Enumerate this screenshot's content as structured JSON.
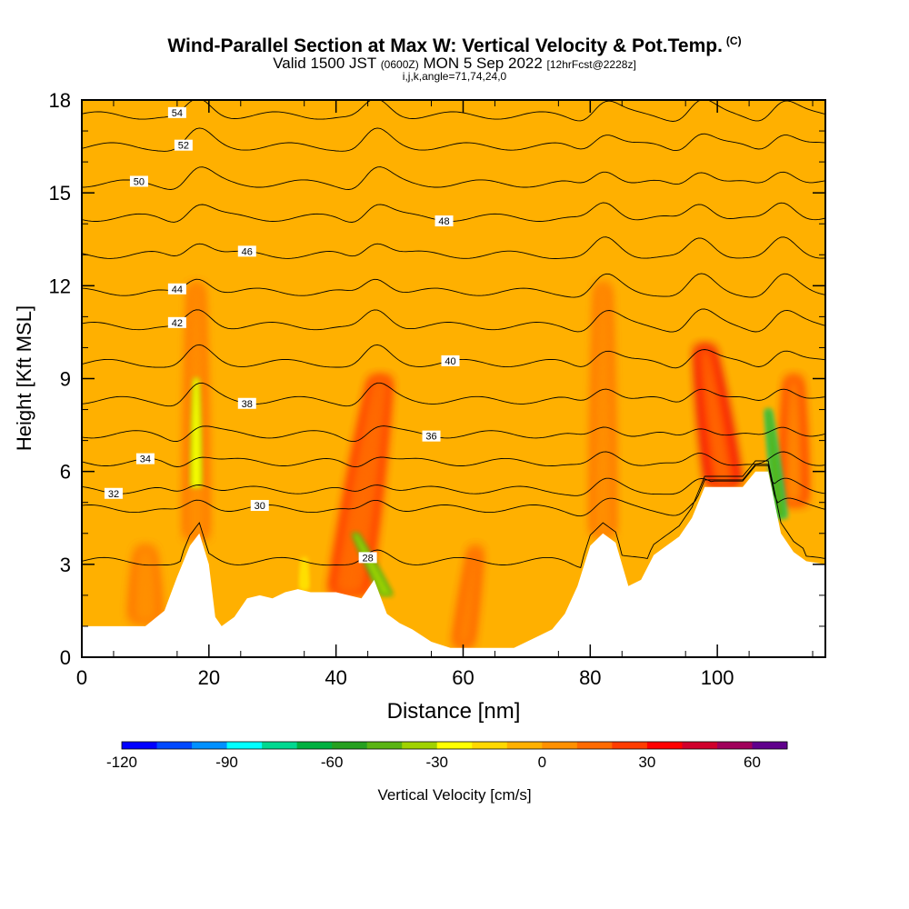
{
  "title": {
    "main": "Wind-Parallel Section at Max W: Vertical Velocity & Pot.Temp.",
    "copyright": "(C)",
    "valid_prefix": "Valid 1500 JST",
    "valid_utc": "(0600Z)",
    "valid_date": "MON 5 Sep 2022",
    "forecast": "[12hrFcst@2228z]",
    "indices": "i,j,k,angle=71,74,24,0"
  },
  "colors": {
    "background_field": "#ffb000",
    "terrain": "#ffffff",
    "contour": "#000000"
  },
  "chart_data": {
    "type": "heatmap",
    "xlabel": "Distance [nm]",
    "ylabel": "Height [Kft MSL]",
    "xlim": [
      0,
      117
    ],
    "ylim": [
      0,
      18
    ],
    "x_ticks": [
      0,
      20,
      40,
      60,
      80,
      100
    ],
    "y_ticks": [
      0,
      3,
      6,
      9,
      12,
      15,
      18
    ],
    "colorbar": {
      "label": "Vertical Velocity [cm/s]",
      "min": -120,
      "max": 70,
      "step": 10,
      "tick_values": [
        -120,
        -90,
        -60,
        -30,
        0,
        30,
        60
      ],
      "colors": [
        "#0000ff",
        "#0048ff",
        "#0090ff",
        "#00ffff",
        "#00d890",
        "#00b040",
        "#26a020",
        "#5ab414",
        "#a0d200",
        "#ffff00",
        "#ffd800",
        "#ffb000",
        "#ff9000",
        "#ff6a00",
        "#ff3c00",
        "#ff0000",
        "#d0002c",
        "#a0005a",
        "#60008c"
      ]
    },
    "terrain": {
      "x": [
        0,
        5,
        10,
        13,
        15,
        17,
        18.5,
        20,
        21,
        22,
        24,
        26,
        28,
        30,
        32,
        34,
        36,
        38,
        40,
        42,
        44,
        46,
        48,
        50,
        52,
        55,
        58,
        60,
        62,
        65,
        68,
        70,
        72,
        74,
        76,
        78,
        80,
        82,
        84,
        86,
        88,
        90,
        92,
        94,
        96,
        98,
        100,
        102,
        104,
        106,
        108,
        110,
        112,
        114,
        117
      ],
      "height": [
        1,
        1,
        1,
        1.5,
        2.6,
        3.6,
        4,
        3,
        1.3,
        1,
        1.3,
        1.9,
        2,
        1.9,
        2.1,
        2.2,
        2.1,
        2.1,
        2.1,
        2,
        1.9,
        2.5,
        1.4,
        1.1,
        0.9,
        0.5,
        0.3,
        0.3,
        0.3,
        0.3,
        0.3,
        0.5,
        0.7,
        0.9,
        1.4,
        2.3,
        3.6,
        4,
        3.7,
        2.3,
        2.5,
        3.3,
        3.6,
        3.9,
        4.5,
        5.5,
        5.5,
        5.5,
        5.5,
        6,
        6,
        4,
        3.4,
        3.1,
        3
      ]
    },
    "updraft_plumes": [
      {
        "x_top": 18,
        "y_top": 12,
        "x_base": 18,
        "y_base": 3.9,
        "w": 15,
        "half_width": 1.6
      },
      {
        "x_top": 47,
        "y_top": 9,
        "x_base": 42,
        "y_base": 2.1,
        "w": 35,
        "half_width": 2.8
      },
      {
        "x_top": 82,
        "y_top": 12,
        "x_base": 82,
        "y_base": 4,
        "w": 18,
        "half_width": 1.6
      },
      {
        "x_top": 98,
        "y_top": 10,
        "x_base": 101,
        "y_base": 5.6,
        "w": 40,
        "half_width": 2.4
      },
      {
        "x_top": 112,
        "y_top": 9,
        "x_base": 112,
        "y_base": 5,
        "w": 30,
        "half_width": 1.8
      },
      {
        "x_top": 62,
        "y_top": 3.5,
        "x_base": 60,
        "y_base": 0.4,
        "w": 20,
        "half_width": 1.2
      },
      {
        "x_top": 10,
        "y_top": 3.5,
        "x_base": 10,
        "y_base": 1.2,
        "w": 15,
        "half_width": 2.2
      }
    ],
    "downdraft_plumes": [
      {
        "x_top": 18,
        "y_top": 9,
        "x_base": 18,
        "y_base": 5.5,
        "w": -40,
        "half_width": 0.8
      },
      {
        "x_top": 43,
        "y_top": 4,
        "x_base": 48,
        "y_base": 2,
        "w": -55,
        "half_width": 1.0
      },
      {
        "x_top": 108,
        "y_top": 8,
        "x_base": 110,
        "y_base": 4.5,
        "w": -80,
        "half_width": 1.0
      },
      {
        "x_top": 35,
        "y_top": 3.2,
        "x_base": 35,
        "y_base": 2.2,
        "w": -30,
        "half_width": 0.6
      }
    ],
    "potential_temperature_contours": [
      {
        "value": 28,
        "y": 3.1,
        "label_x": 45
      },
      {
        "value": 30,
        "y": 4.8,
        "label_x": 28
      },
      {
        "value": 32,
        "y": 5.4,
        "label_x": 5
      },
      {
        "value": 34,
        "y": 6.3,
        "label_x": 10
      },
      {
        "value": 36,
        "y": 7.2,
        "label_x": 55
      },
      {
        "value": 38,
        "y": 8.3,
        "label_x": 26
      },
      {
        "value": 40,
        "y": 9.5,
        "label_x": 58
      },
      {
        "value": 42,
        "y": 10.7,
        "label_x": 15
      },
      {
        "value": 44,
        "y": 11.8,
        "label_x": 15
      },
      {
        "value": 46,
        "y": 13.0,
        "label_x": 26
      },
      {
        "value": 48,
        "y": 14.2,
        "label_x": 57
      },
      {
        "value": 50,
        "y": 15.3,
        "label_x": 9
      },
      {
        "value": 52,
        "y": 16.5,
        "label_x": 16
      },
      {
        "value": 54,
        "y": 17.5,
        "label_x": 15
      }
    ]
  }
}
